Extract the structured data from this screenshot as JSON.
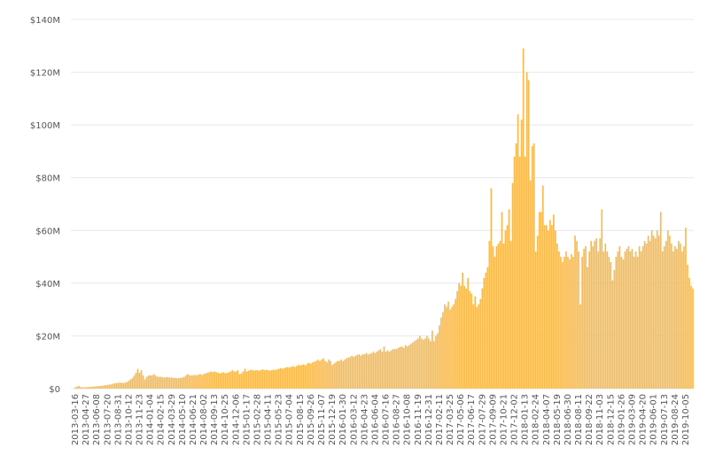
{
  "chart_data": {
    "type": "bar",
    "color": "#f9bb50",
    "grid": true,
    "ylim": [
      0,
      140000000
    ],
    "yticks": [
      {
        "value": 0,
        "label": "$0"
      },
      {
        "value": 20000000,
        "label": "$20M"
      },
      {
        "value": 40000000,
        "label": "$40M"
      },
      {
        "value": 60000000,
        "label": "$60M"
      },
      {
        "value": 80000000,
        "label": "$80M"
      },
      {
        "value": 100000000,
        "label": "$100M"
      },
      {
        "value": 120000000,
        "label": "$120M"
      },
      {
        "value": 140000000,
        "label": "$140M"
      }
    ],
    "categories": [
      "2013-03-16",
      null,
      null,
      null,
      null,
      null,
      "2013-04-27",
      null,
      null,
      null,
      null,
      null,
      "2013-06-08",
      null,
      null,
      null,
      null,
      null,
      "2013-07-20",
      null,
      null,
      null,
      null,
      null,
      "2013-08-31",
      null,
      null,
      null,
      null,
      null,
      "2013-10-12",
      null,
      null,
      null,
      null,
      null,
      "2013-11-23",
      null,
      null,
      null,
      null,
      null,
      "2014-01-04",
      null,
      null,
      null,
      null,
      null,
      "2014-02-15",
      null,
      null,
      null,
      null,
      null,
      "2014-03-29",
      null,
      null,
      null,
      null,
      null,
      "2014-05-10",
      null,
      null,
      null,
      null,
      null,
      "2014-06-21",
      null,
      null,
      null,
      null,
      null,
      "2014-08-02",
      null,
      null,
      null,
      null,
      null,
      "2014-09-13",
      null,
      null,
      null,
      null,
      null,
      "2014-10-25",
      null,
      null,
      null,
      null,
      null,
      "2014-12-06",
      null,
      null,
      null,
      null,
      null,
      "2015-01-17",
      null,
      null,
      null,
      null,
      null,
      "2015-02-28",
      null,
      null,
      null,
      null,
      null,
      "2015-04-11",
      null,
      null,
      null,
      null,
      null,
      "2015-05-23",
      null,
      null,
      null,
      null,
      null,
      "2015-07-04",
      null,
      null,
      null,
      null,
      null,
      "2015-08-15",
      null,
      null,
      null,
      null,
      null,
      "2015-09-26",
      null,
      null,
      null,
      null,
      null,
      "2015-11-07",
      null,
      null,
      null,
      null,
      null,
      "2015-12-19",
      null,
      null,
      null,
      null,
      null,
      "2016-01-30",
      null,
      null,
      null,
      null,
      null,
      "2016-03-12",
      null,
      null,
      null,
      null,
      null,
      "2016-04-23",
      null,
      null,
      null,
      null,
      null,
      "2016-06-04",
      null,
      null,
      null,
      null,
      null,
      "2016-07-16",
      null,
      null,
      null,
      null,
      null,
      "2016-08-27",
      null,
      null,
      null,
      null,
      null,
      "2016-10-08",
      null,
      null,
      null,
      null,
      null,
      "2016-11-19",
      null,
      null,
      null,
      null,
      null,
      "2016-12-31",
      null,
      null,
      null,
      null,
      null,
      "2017-02-11",
      null,
      null,
      null,
      null,
      null,
      "2017-03-25",
      null,
      null,
      null,
      null,
      null,
      "2017-05-06",
      null,
      null,
      null,
      null,
      null,
      "2017-06-17",
      null,
      null,
      null,
      null,
      null,
      "2017-07-29",
      null,
      null,
      null,
      null,
      null,
      "2017-09-09",
      null,
      null,
      null,
      null,
      null,
      "2017-10-21",
      null,
      null,
      null,
      null,
      null,
      "2017-12-02",
      null,
      null,
      null,
      null,
      null,
      "2018-01-13",
      null,
      null,
      null,
      null,
      null,
      "2018-02-24",
      null,
      null,
      null,
      null,
      null,
      "2018-04-07",
      null,
      null,
      null,
      null,
      null,
      "2018-05-19",
      null,
      null,
      null,
      null,
      null,
      "2018-06-30",
      null,
      null,
      null,
      null,
      null,
      "2018-08-11",
      null,
      null,
      null,
      null,
      null,
      "2018-09-22",
      null,
      null,
      null,
      null,
      null,
      "2018-11-03",
      null,
      null,
      null,
      null,
      null,
      "2018-12-15",
      null,
      null,
      null,
      null,
      null,
      "2019-01-26",
      null,
      null,
      null,
      null,
      null,
      "2019-03-09",
      null,
      null,
      null,
      null,
      null,
      "2019-04-20",
      null,
      null,
      null,
      null,
      null,
      "2019-06-01",
      null,
      null,
      null,
      null,
      null,
      "2019-07-13",
      null,
      null,
      null,
      null,
      null,
      "2019-08-24",
      null,
      null,
      null,
      null,
      null,
      "2019-10-05",
      null,
      null,
      null,
      null
    ],
    "values": [
      500000,
      800000,
      1000000,
      600000,
      500000,
      500000,
      500000,
      600000,
      600000,
      700000,
      800000,
      800000,
      900000,
      1000000,
      1000000,
      1100000,
      1200000,
      1300000,
      1400000,
      1500000,
      1600000,
      1800000,
      2000000,
      2100000,
      2200000,
      2300000,
      2200000,
      2100000,
      2300000,
      2500000,
      3000000,
      3500000,
      4000000,
      5000000,
      6000000,
      7500000,
      6000000,
      7000000,
      5000000,
      3500000,
      4500000,
      5000000,
      5000000,
      5000000,
      5500000,
      5000000,
      4500000,
      4500000,
      4500000,
      4300000,
      4200000,
      4400000,
      4300000,
      4200000,
      4200000,
      4000000,
      4100000,
      3900000,
      4000000,
      4100000,
      4200000,
      4500000,
      5000000,
      5500000,
      5000000,
      5000000,
      5000000,
      5200000,
      5000000,
      5300000,
      5500000,
      5200000,
      5500000,
      5800000,
      6000000,
      6200000,
      6500000,
      6300000,
      6500000,
      6200000,
      6000000,
      5800000,
      6000000,
      6200000,
      5800000,
      6000000,
      6200000,
      6500000,
      7000000,
      6500000,
      6500000,
      7000000,
      5500000,
      5800000,
      6500000,
      7500000,
      6500000,
      6800000,
      7000000,
      7200000,
      6800000,
      7000000,
      7000000,
      6800000,
      7100000,
      7300000,
      7000000,
      7200000,
      7000000,
      6800000,
      7000000,
      7200000,
      7000000,
      7300000,
      7500000,
      7800000,
      7600000,
      7800000,
      8000000,
      8200000,
      8000000,
      8300000,
      8500000,
      8200000,
      8600000,
      9000000,
      8800000,
      9000000,
      9200000,
      8800000,
      9500000,
      9800000,
      9500000,
      10000000,
      10200000,
      10500000,
      11000000,
      10500000,
      11000000,
      11500000,
      10500000,
      10000000,
      11000000,
      10500000,
      9000000,
      9500000,
      10000000,
      10500000,
      10500000,
      11000000,
      10500000,
      11000000,
      11500000,
      11800000,
      12000000,
      12500000,
      12000000,
      12500000,
      12800000,
      13000000,
      12500000,
      13000000,
      13000000,
      13500000,
      13000000,
      13200000,
      13500000,
      14000000,
      13500000,
      14000000,
      14500000,
      15000000,
      14000000,
      16000000,
      14000000,
      14500000,
      14000000,
      14500000,
      15000000,
      15000000,
      15000000,
      15500000,
      15800000,
      16000000,
      15500000,
      16500000,
      16000000,
      16500000,
      17000000,
      17500000,
      18000000,
      18500000,
      19000000,
      20000000,
      19000000,
      18500000,
      19000000,
      20000000,
      19000000,
      18000000,
      22000000,
      18000000,
      20000000,
      21000000,
      24000000,
      27000000,
      29000000,
      32000000,
      31000000,
      33000000,
      30000000,
      31000000,
      32000000,
      34000000,
      37000000,
      40000000,
      39000000,
      44000000,
      39000000,
      38000000,
      42000000,
      37000000,
      36000000,
      32000000,
      35000000,
      31000000,
      32000000,
      34000000,
      38000000,
      42000000,
      44000000,
      46000000,
      56000000,
      76000000,
      54000000,
      50000000,
      54000000,
      55000000,
      56000000,
      67000000,
      55000000,
      60000000,
      62000000,
      68000000,
      56000000,
      78000000,
      88000000,
      93000000,
      104000000,
      88000000,
      102000000,
      129000000,
      88000000,
      120000000,
      117000000,
      79000000,
      92000000,
      93000000,
      52000000,
      58000000,
      67000000,
      67000000,
      77000000,
      62000000,
      62000000,
      60000000,
      64000000,
      62000000,
      66000000,
      60000000,
      55000000,
      52000000,
      50000000,
      48000000,
      50000000,
      52000000,
      50000000,
      49000000,
      51000000,
      50000000,
      58000000,
      56000000,
      52000000,
      32000000,
      50000000,
      53000000,
      54000000,
      46000000,
      52000000,
      56000000,
      54000000,
      56000000,
      57000000,
      52000000,
      57000000,
      68000000,
      52000000,
      55000000,
      52000000,
      50000000,
      48000000,
      41000000,
      45000000,
      50000000,
      52000000,
      54000000,
      50000000,
      49000000,
      52000000,
      53000000,
      54000000,
      52000000,
      53000000,
      50000000,
      52000000,
      50000000,
      54000000,
      52000000,
      54000000,
      56000000,
      55000000,
      58000000,
      56000000,
      60000000,
      58000000,
      57000000,
      60000000,
      58000000,
      67000000,
      52000000,
      54000000,
      56000000,
      60000000,
      58000000,
      55000000,
      52000000,
      54000000,
      53000000,
      56000000,
      55000000,
      52000000,
      54000000,
      61000000,
      47000000,
      42000000,
      39000000,
      38000000
    ]
  }
}
